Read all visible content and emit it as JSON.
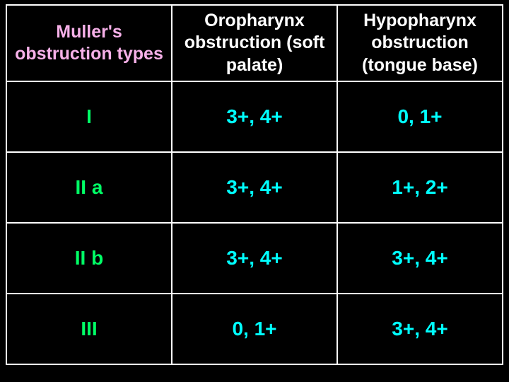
{
  "table": {
    "type": "table",
    "background_color": "#000000",
    "border_color": "#ffffff",
    "border_width": 2,
    "columns": [
      {
        "label": "Muller's obstruction types",
        "color": "#f6b0e8",
        "fontsize": 25,
        "weight": "bold",
        "align": "center"
      },
      {
        "label": "Oropharynx obstruction (soft palate)",
        "color": "#ffffff",
        "fontsize": 25,
        "weight": "bold",
        "align": "center"
      },
      {
        "label": "Hypopharynx obstruction (tongue base)",
        "color": "#ffffff",
        "fontsize": 25,
        "weight": "bold",
        "align": "center"
      }
    ],
    "row_label_style": {
      "color": "#00ff66",
      "fontsize": 28,
      "weight": "bold"
    },
    "cell_style": {
      "color": "#00ffff",
      "fontsize": 28,
      "weight": "bold"
    },
    "rows": [
      {
        "label": "I",
        "oropharynx": "3+, 4+",
        "hypopharynx": "0, 1+"
      },
      {
        "label": "II a",
        "oropharynx": "3+, 4+",
        "hypopharynx": "1+, 2+"
      },
      {
        "label": "II b",
        "oropharynx": "3+, 4+",
        "hypopharynx": "3+, 4+"
      },
      {
        "label": "III",
        "oropharynx": "0, 1+",
        "hypopharynx": "3+, 4+"
      }
    ]
  }
}
